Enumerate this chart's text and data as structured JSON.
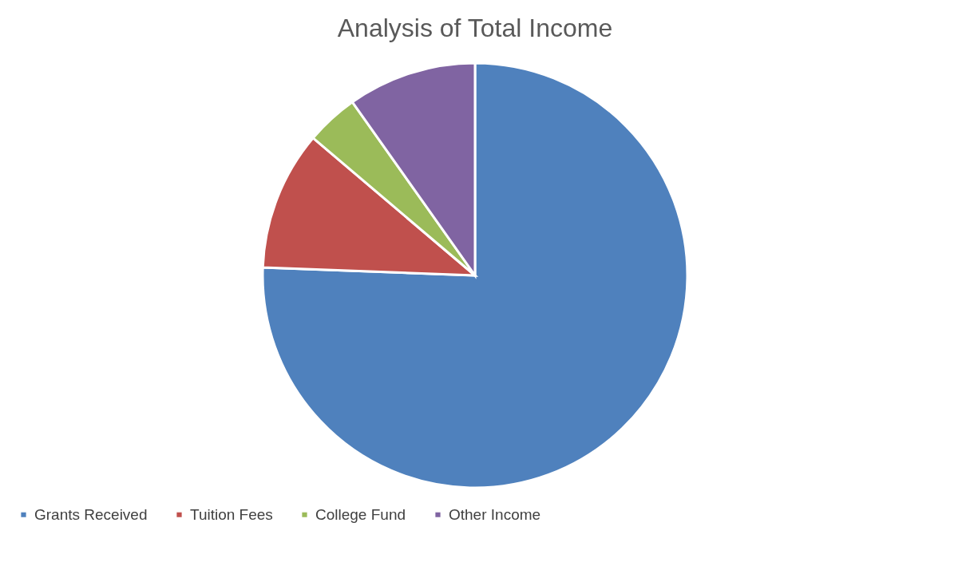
{
  "chart_data": {
    "type": "pie",
    "title": "Analysis of Total Income",
    "categories": [
      "Grants Received",
      "Tuition Fees",
      "College Fund",
      "Other Income"
    ],
    "values": [
      75.6,
      10.6,
      4.0,
      9.8
    ],
    "colors": [
      "#4f81bd",
      "#c0504d",
      "#9bbb59",
      "#8064a2"
    ],
    "legend": "bottom"
  }
}
